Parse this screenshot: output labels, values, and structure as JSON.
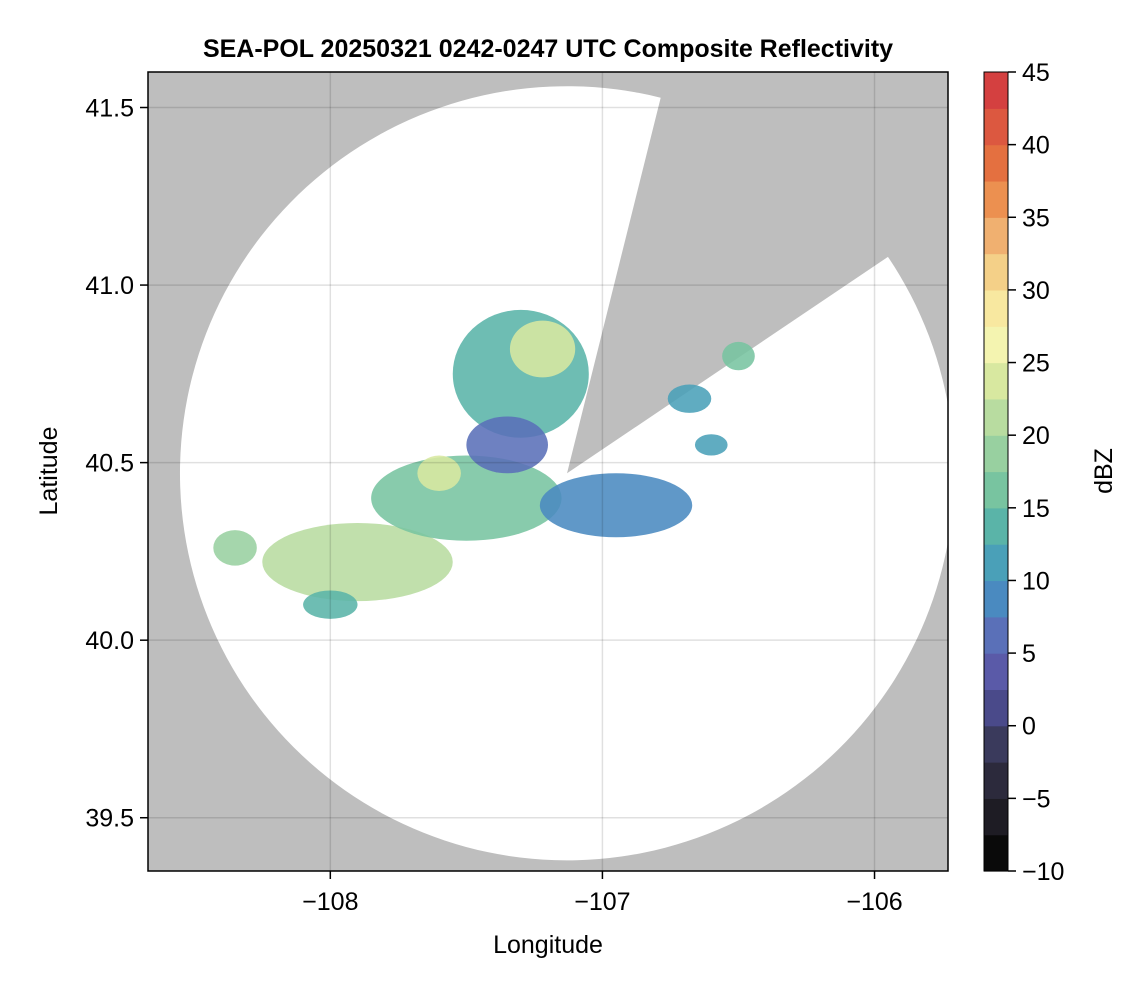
{
  "chart_data": {
    "type": "heatmap",
    "title": "SEA-POL 20250321 0242-0247 UTC Composite Reflectivity",
    "xlabel": "Longitude",
    "ylabel": "Latitude",
    "xlim": [
      -108.67,
      -105.73
    ],
    "ylim": [
      39.35,
      41.6
    ],
    "xticks": [
      -108,
      -107,
      -106
    ],
    "xtick_labels": [
      "−108",
      "−107",
      "−106"
    ],
    "yticks": [
      39.5,
      40.0,
      40.5,
      41.0,
      41.5
    ],
    "ytick_labels": [
      "39.5",
      "40.0",
      "40.5",
      "41.0",
      "41.5"
    ],
    "grid": true,
    "background_color": "#bebebe",
    "radar": {
      "center_lon": -107.13,
      "center_lat": 40.47,
      "range_lat_deg": 1.09,
      "blocked_sectors_deg_from_north": [
        [
          14,
          56
        ]
      ]
    },
    "echo_regions": [
      {
        "lon": -107.9,
        "lat": 40.22,
        "radius_lon": 0.35,
        "radius_lat": 0.11,
        "dbz": 22
      },
      {
        "lon": -107.5,
        "lat": 40.4,
        "radius_lon": 0.35,
        "radius_lat": 0.12,
        "dbz": 15
      },
      {
        "lon": -107.3,
        "lat": 40.75,
        "radius_lon": 0.25,
        "radius_lat": 0.18,
        "dbz": 14
      },
      {
        "lon": -107.22,
        "lat": 40.82,
        "radius_lon": 0.12,
        "radius_lat": 0.08,
        "dbz": 24
      },
      {
        "lon": -106.95,
        "lat": 40.38,
        "radius_lon": 0.28,
        "radius_lat": 0.09,
        "dbz": 8
      },
      {
        "lon": -107.6,
        "lat": 40.47,
        "radius_lon": 0.08,
        "radius_lat": 0.05,
        "dbz": 24
      },
      {
        "lon": -107.35,
        "lat": 40.55,
        "radius_lon": 0.15,
        "radius_lat": 0.08,
        "dbz": 6
      },
      {
        "lon": -106.68,
        "lat": 40.68,
        "radius_lon": 0.08,
        "radius_lat": 0.04,
        "dbz": 12
      },
      {
        "lon": -106.5,
        "lat": 40.8,
        "radius_lon": 0.06,
        "radius_lat": 0.04,
        "dbz": 16
      },
      {
        "lon": -106.6,
        "lat": 40.55,
        "radius_lon": 0.06,
        "radius_lat": 0.03,
        "dbz": 10
      },
      {
        "lon": -108.0,
        "lat": 40.1,
        "radius_lon": 0.1,
        "radius_lat": 0.04,
        "dbz": 14
      },
      {
        "lon": -108.35,
        "lat": 40.26,
        "radius_lon": 0.08,
        "radius_lat": 0.05,
        "dbz": 18
      }
    ],
    "colorbar": {
      "label": "dBZ",
      "min": -10,
      "max": 45,
      "step": 2.5,
      "ticks": [
        -10,
        -5,
        0,
        5,
        10,
        15,
        20,
        25,
        30,
        35,
        40,
        45
      ],
      "tick_labels": [
        "−10",
        "−5",
        "0",
        "5",
        "10",
        "15",
        "20",
        "25",
        "30",
        "35",
        "40",
        "45"
      ],
      "colors": [
        "#0a0a0a",
        "#1e1c24",
        "#2c2a3c",
        "#3a3a5c",
        "#4a4a8a",
        "#5a5aa8",
        "#5a70b8",
        "#4a8ac0",
        "#4aa0b8",
        "#5ab4a8",
        "#78c4a0",
        "#98d0a0",
        "#b8dca0",
        "#d8e8a0",
        "#f4f4b0",
        "#f8e8a0",
        "#f4d088",
        "#f0b070",
        "#ec9050",
        "#e47040",
        "#dc5840",
        "#d44040",
        "#c02850",
        "#a81850",
        "#c83078",
        "#d85098",
        "#e878b0",
        "#e8a0cc",
        "#c098cc",
        "#a070b0",
        "#804890",
        "#602870",
        "#400050"
      ]
    }
  }
}
